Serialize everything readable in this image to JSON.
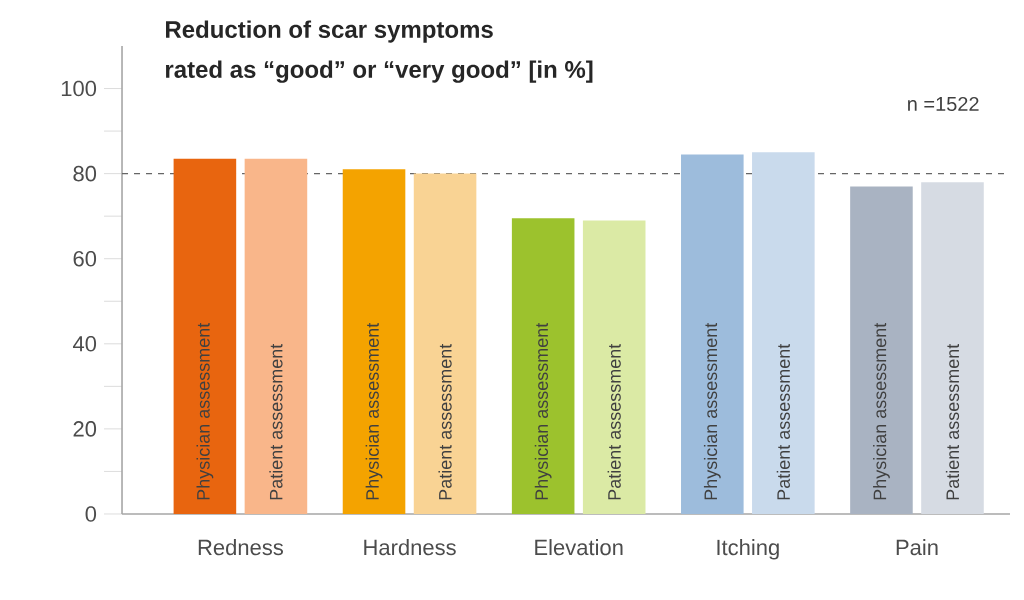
{
  "chart_data": {
    "type": "bar",
    "title": "Reduction of scar symptoms",
    "subtitle": "rated as “good” or “very good” [in %]",
    "categories": [
      "Redness",
      "Hardness",
      "Elevation",
      "Itching",
      "Pain"
    ],
    "series": [
      {
        "name": "Physician assessment",
        "values": [
          83.5,
          81,
          69.5,
          84.5,
          77
        ],
        "colors": [
          "#e8650f",
          "#f4a300",
          "#9cc22d",
          "#9dbcdc",
          "#a9b3c2"
        ]
      },
      {
        "name": "Patient assessment",
        "values": [
          83.5,
          80,
          69,
          85,
          78
        ],
        "colors": [
          "#f9b68a",
          "#f9d394",
          "#dbeaa5",
          "#c9daec",
          "#d6dbe3"
        ]
      }
    ],
    "ylim": [
      0,
      110
    ],
    "yticks": [
      0,
      {
        "value": 10,
        "label": null
      },
      20,
      {
        "value": 30,
        "label": null
      },
      40,
      {
        "value": 50,
        "label": null
      },
      60,
      {
        "value": 70,
        "label": null
      },
      80,
      {
        "value": 90,
        "label": null
      },
      100
    ],
    "ref_lines": [
      {
        "axis": "y",
        "value": 80,
        "color": "#666666",
        "line_style": "dashed"
      }
    ],
    "annotations": [
      "n =1522"
    ]
  }
}
